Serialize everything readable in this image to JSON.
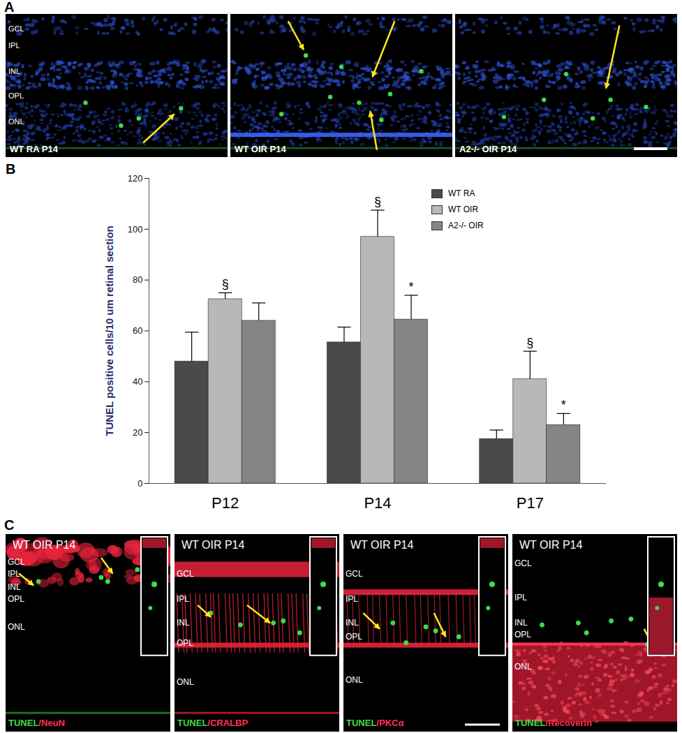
{
  "panels": {
    "A": {
      "label": "A",
      "images": [
        {
          "caption": "WT RA P14",
          "layers": [
            "GCL",
            "IPL",
            "INL",
            "OPL",
            "ONL"
          ]
        },
        {
          "caption": "WT OIR P14"
        },
        {
          "caption": "A2-/- OIR P14"
        }
      ]
    },
    "B": {
      "label": "B"
    },
    "C": {
      "label": "C",
      "images": [
        {
          "caption": "WT OIR P14",
          "layers": [
            "GCL",
            "IPL",
            "INL",
            "OPL",
            "ONL"
          ],
          "stain": [
            {
              "text": "TUNEL",
              "color": "#3ddc4a"
            },
            {
              "text": "/NeuN",
              "color": "#ff2f55"
            }
          ]
        },
        {
          "caption": "WT OIR P14",
          "layers": [
            "GCL",
            "IPL",
            "INL",
            "OPL",
            "ONL"
          ],
          "stain": [
            {
              "text": "TUNEL",
              "color": "#3ddc4a"
            },
            {
              "text": "/CRALBP",
              "color": "#ff2f55"
            }
          ]
        },
        {
          "caption": "WT OIR P14",
          "layers": [
            "GCL",
            "IPL",
            "INL",
            "OPL",
            "ONL"
          ],
          "stain": [
            {
              "text": "TUNEL",
              "color": "#3ddc4a"
            },
            {
              "text": "/PKCα",
              "color": "#ff2f55"
            }
          ]
        },
        {
          "caption": "WT OIR P14",
          "layers": [
            "GCL",
            "IPL",
            "INL",
            "OPL",
            "ONL"
          ],
          "stain": [
            {
              "text": "TUNEL",
              "color": "#3ddc4a"
            },
            {
              "text": "/Recoverin",
              "color": "#ff2f55"
            }
          ]
        }
      ]
    }
  },
  "chart_data": {
    "type": "bar",
    "y_label": "TUNEL positive cells/10 um retinal section",
    "categories": [
      "P12",
      "P14",
      "P17"
    ],
    "series": [
      {
        "name": "WT RA",
        "color": "#4a4a4a",
        "values": [
          48,
          55.5,
          17.5
        ],
        "errors": [
          11.5,
          6,
          3.5
        ]
      },
      {
        "name": "WT OIR",
        "color": "#b8b8b8",
        "values": [
          72.5,
          97,
          41
        ],
        "errors": [
          2.5,
          10.5,
          11
        ]
      },
      {
        "name": "A2-/- OIR",
        "color": "#858585",
        "values": [
          64,
          64.5,
          23
        ],
        "errors": [
          7,
          9.5,
          4.5
        ]
      }
    ],
    "ylim": [
      0,
      120
    ],
    "yticks": [
      0,
      20,
      40,
      60,
      80,
      100,
      120
    ],
    "grid": false,
    "legend": "top-right",
    "annotations": [
      {
        "category": "P12",
        "series": "WT OIR",
        "text": "§"
      },
      {
        "category": "P14",
        "series": "WT OIR",
        "text": "§"
      },
      {
        "category": "P17",
        "series": "WT OIR",
        "text": "§"
      },
      {
        "category": "P14",
        "series": "A2-/- OIR",
        "text": "*"
      },
      {
        "category": "P17",
        "series": "A2-/- OIR",
        "text": "*"
      }
    ]
  }
}
